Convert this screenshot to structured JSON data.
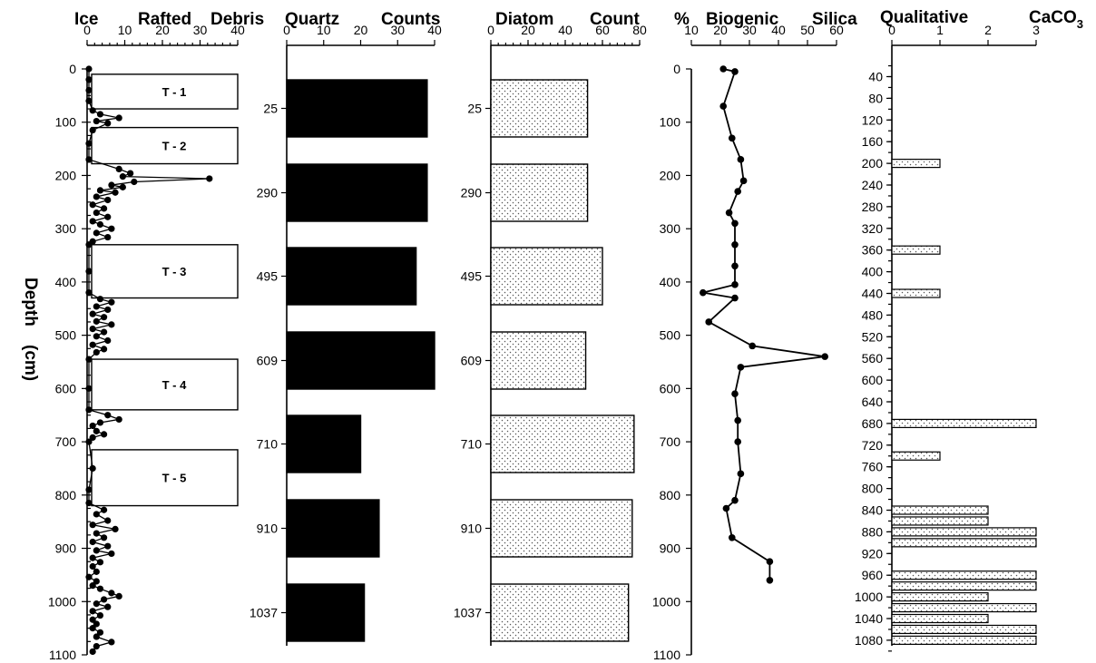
{
  "chart_data": [
    {
      "type": "scatter",
      "title": "Ice Rafted Debris",
      "title_words": [
        "Ice",
        "Rafted",
        "Debris"
      ],
      "ylabel": "Depth (cm)",
      "ylabel_words": [
        "Depth",
        "(cm)"
      ],
      "xlim": [
        0,
        40
      ],
      "x_ticks": [
        0,
        10,
        20,
        30,
        40
      ],
      "ylim": [
        0,
        1100
      ],
      "y_ticks": [
        0,
        100,
        200,
        300,
        400,
        500,
        600,
        700,
        800,
        900,
        1000,
        1100
      ],
      "intervals": [
        {
          "label": "T - 1",
          "top": 10,
          "bottom": 75
        },
        {
          "label": "T - 2",
          "top": 110,
          "bottom": 178
        },
        {
          "label": "T - 3",
          "top": 330,
          "bottom": 430
        },
        {
          "label": "T - 4",
          "top": 545,
          "bottom": 640
        },
        {
          "label": "T - 5",
          "top": 715,
          "bottom": 820
        }
      ],
      "points": [
        {
          "x": 0,
          "y": 0
        },
        {
          "x": 0,
          "y": 20
        },
        {
          "x": 0,
          "y": 40
        },
        {
          "x": 0,
          "y": 60
        },
        {
          "x": 1,
          "y": 78
        },
        {
          "x": 3,
          "y": 85
        },
        {
          "x": 8,
          "y": 92
        },
        {
          "x": 2,
          "y": 98
        },
        {
          "x": 5,
          "y": 102
        },
        {
          "x": 1,
          "y": 115
        },
        {
          "x": 0,
          "y": 140
        },
        {
          "x": 0,
          "y": 170
        },
        {
          "x": 8,
          "y": 188
        },
        {
          "x": 11,
          "y": 196
        },
        {
          "x": 9,
          "y": 202
        },
        {
          "x": 32,
          "y": 206
        },
        {
          "x": 12,
          "y": 212
        },
        {
          "x": 6,
          "y": 218
        },
        {
          "x": 9,
          "y": 222
        },
        {
          "x": 3,
          "y": 228
        },
        {
          "x": 7,
          "y": 232
        },
        {
          "x": 2,
          "y": 240
        },
        {
          "x": 5,
          "y": 246
        },
        {
          "x": 1,
          "y": 255
        },
        {
          "x": 4,
          "y": 262
        },
        {
          "x": 2,
          "y": 270
        },
        {
          "x": 5,
          "y": 278
        },
        {
          "x": 1,
          "y": 286
        },
        {
          "x": 3,
          "y": 292
        },
        {
          "x": 6,
          "y": 300
        },
        {
          "x": 2,
          "y": 308
        },
        {
          "x": 5,
          "y": 316
        },
        {
          "x": 1,
          "y": 324
        },
        {
          "x": 0,
          "y": 330
        },
        {
          "x": 0,
          "y": 380
        },
        {
          "x": 0,
          "y": 420
        },
        {
          "x": 3,
          "y": 432
        },
        {
          "x": 6,
          "y": 438
        },
        {
          "x": 2,
          "y": 446
        },
        {
          "x": 5,
          "y": 452
        },
        {
          "x": 1,
          "y": 460
        },
        {
          "x": 4,
          "y": 466
        },
        {
          "x": 2,
          "y": 474
        },
        {
          "x": 6,
          "y": 480
        },
        {
          "x": 1,
          "y": 488
        },
        {
          "x": 4,
          "y": 494
        },
        {
          "x": 2,
          "y": 502
        },
        {
          "x": 5,
          "y": 510
        },
        {
          "x": 1,
          "y": 518
        },
        {
          "x": 4,
          "y": 526
        },
        {
          "x": 2,
          "y": 532
        },
        {
          "x": 0,
          "y": 545
        },
        {
          "x": 0,
          "y": 600
        },
        {
          "x": 0,
          "y": 640
        },
        {
          "x": 5,
          "y": 650
        },
        {
          "x": 8,
          "y": 658
        },
        {
          "x": 3,
          "y": 664
        },
        {
          "x": 1,
          "y": 670
        },
        {
          "x": 2,
          "y": 680
        },
        {
          "x": 4,
          "y": 686
        },
        {
          "x": 1,
          "y": 692
        },
        {
          "x": 0,
          "y": 700
        },
        {
          "x": 1,
          "y": 750
        },
        {
          "x": 0,
          "y": 790
        },
        {
          "x": 0,
          "y": 815
        },
        {
          "x": 4,
          "y": 828
        },
        {
          "x": 2,
          "y": 836
        },
        {
          "x": 5,
          "y": 848
        },
        {
          "x": 1,
          "y": 856
        },
        {
          "x": 7,
          "y": 864
        },
        {
          "x": 2,
          "y": 872
        },
        {
          "x": 4,
          "y": 880
        },
        {
          "x": 1,
          "y": 888
        },
        {
          "x": 5,
          "y": 896
        },
        {
          "x": 2,
          "y": 904
        },
        {
          "x": 6,
          "y": 910
        },
        {
          "x": 1,
          "y": 918
        },
        {
          "x": 3,
          "y": 926
        },
        {
          "x": 1,
          "y": 934
        },
        {
          "x": 2,
          "y": 944
        },
        {
          "x": 0,
          "y": 954
        },
        {
          "x": 2,
          "y": 962
        },
        {
          "x": 1,
          "y": 970
        },
        {
          "x": 3,
          "y": 976
        },
        {
          "x": 6,
          "y": 984
        },
        {
          "x": 8,
          "y": 990
        },
        {
          "x": 4,
          "y": 996
        },
        {
          "x": 2,
          "y": 1004
        },
        {
          "x": 5,
          "y": 1010
        },
        {
          "x": 1,
          "y": 1018
        },
        {
          "x": 3,
          "y": 1026
        },
        {
          "x": 1,
          "y": 1034
        },
        {
          "x": 2,
          "y": 1042
        },
        {
          "x": 1,
          "y": 1050
        },
        {
          "x": 3,
          "y": 1058
        },
        {
          "x": 2,
          "y": 1066
        },
        {
          "x": 6,
          "y": 1076
        },
        {
          "x": 2,
          "y": 1084
        },
        {
          "x": 1,
          "y": 1094
        }
      ]
    },
    {
      "type": "bar",
      "orientation": "horizontal",
      "title": "Quartz Counts",
      "title_words": [
        "Quartz",
        "Counts"
      ],
      "xlim": [
        0,
        40
      ],
      "x_ticks": [
        0,
        10,
        20,
        30,
        40
      ],
      "categories": [
        "25",
        "290",
        "495",
        "609",
        "710",
        "910",
        "1037"
      ],
      "values": [
        38,
        38,
        35,
        40,
        20,
        25,
        21
      ],
      "bar_color": "#000000"
    },
    {
      "type": "bar",
      "orientation": "horizontal",
      "title": "Diatom Count",
      "title_words": [
        "Diatom",
        "Count"
      ],
      "xlim": [
        0,
        80
      ],
      "x_ticks": [
        0,
        20,
        40,
        60,
        80
      ],
      "categories": [
        "25",
        "290",
        "495",
        "609",
        "710",
        "910",
        "1037"
      ],
      "values": [
        52,
        52,
        60,
        51,
        77,
        76,
        74
      ],
      "bar_fill": "stipple"
    },
    {
      "type": "line",
      "title": "% Biogenic Silica",
      "title_words": [
        "%",
        "Biogenic",
        "Silica"
      ],
      "xlim": [
        10,
        60
      ],
      "x_ticks": [
        10,
        20,
        30,
        40,
        50,
        60
      ],
      "ylim": [
        0,
        1100
      ],
      "y_ticks": [
        0,
        100,
        200,
        300,
        400,
        500,
        600,
        700,
        800,
        900,
        1000,
        1100
      ],
      "points": [
        {
          "x": 21,
          "y": 0
        },
        {
          "x": 25,
          "y": 5
        },
        {
          "x": 21,
          "y": 70
        },
        {
          "x": 24,
          "y": 130
        },
        {
          "x": 27,
          "y": 170
        },
        {
          "x": 28,
          "y": 210
        },
        {
          "x": 26,
          "y": 230
        },
        {
          "x": 23,
          "y": 270
        },
        {
          "x": 25,
          "y": 290
        },
        {
          "x": 25,
          "y": 330
        },
        {
          "x": 25,
          "y": 370
        },
        {
          "x": 25,
          "y": 405
        },
        {
          "x": 14,
          "y": 420
        },
        {
          "x": 25,
          "y": 430
        },
        {
          "x": 16,
          "y": 475
        },
        {
          "x": 31,
          "y": 520
        },
        {
          "x": 56,
          "y": 540
        },
        {
          "x": 27,
          "y": 560
        },
        {
          "x": 25,
          "y": 610
        },
        {
          "x": 26,
          "y": 660
        },
        {
          "x": 26,
          "y": 700
        },
        {
          "x": 27,
          "y": 760
        },
        {
          "x": 25,
          "y": 810
        },
        {
          "x": 22,
          "y": 825
        },
        {
          "x": 24,
          "y": 880
        },
        {
          "x": 37,
          "y": 925
        },
        {
          "x": 37,
          "y": 960
        }
      ]
    },
    {
      "type": "bar",
      "orientation": "horizontal",
      "title": "Qualitative CaCO",
      "title_words": [
        "Qualitative",
        "CaCO"
      ],
      "title_subscript": "3",
      "xlim": [
        0,
        3
      ],
      "x_ticks": [
        0,
        1,
        2,
        3
      ],
      "categories": [
        "40",
        "80",
        "120",
        "160",
        "200",
        "240",
        "280",
        "320",
        "360",
        "400",
        "440",
        "480",
        "520",
        "560",
        "600",
        "640",
        "680",
        "720",
        "760",
        "800",
        "840",
        "880",
        "920",
        "960",
        "1000",
        "1040",
        "1080"
      ],
      "bars": [
        {
          "depth": 200,
          "value": 1
        },
        {
          "depth": 360,
          "value": 1
        },
        {
          "depth": 440,
          "value": 1
        },
        {
          "depth": 680,
          "value": 3
        },
        {
          "depth": 740,
          "value": 1
        },
        {
          "depth": 840,
          "value": 2
        },
        {
          "depth": 860,
          "value": 2
        },
        {
          "depth": 880,
          "value": 3
        },
        {
          "depth": 900,
          "value": 3
        },
        {
          "depth": 960,
          "value": 3
        },
        {
          "depth": 980,
          "value": 3
        },
        {
          "depth": 1000,
          "value": 2
        },
        {
          "depth": 1020,
          "value": 3
        },
        {
          "depth": 1040,
          "value": 2
        },
        {
          "depth": 1060,
          "value": 3
        },
        {
          "depth": 1080,
          "value": 3
        }
      ],
      "bar_fill": "stipple"
    }
  ]
}
